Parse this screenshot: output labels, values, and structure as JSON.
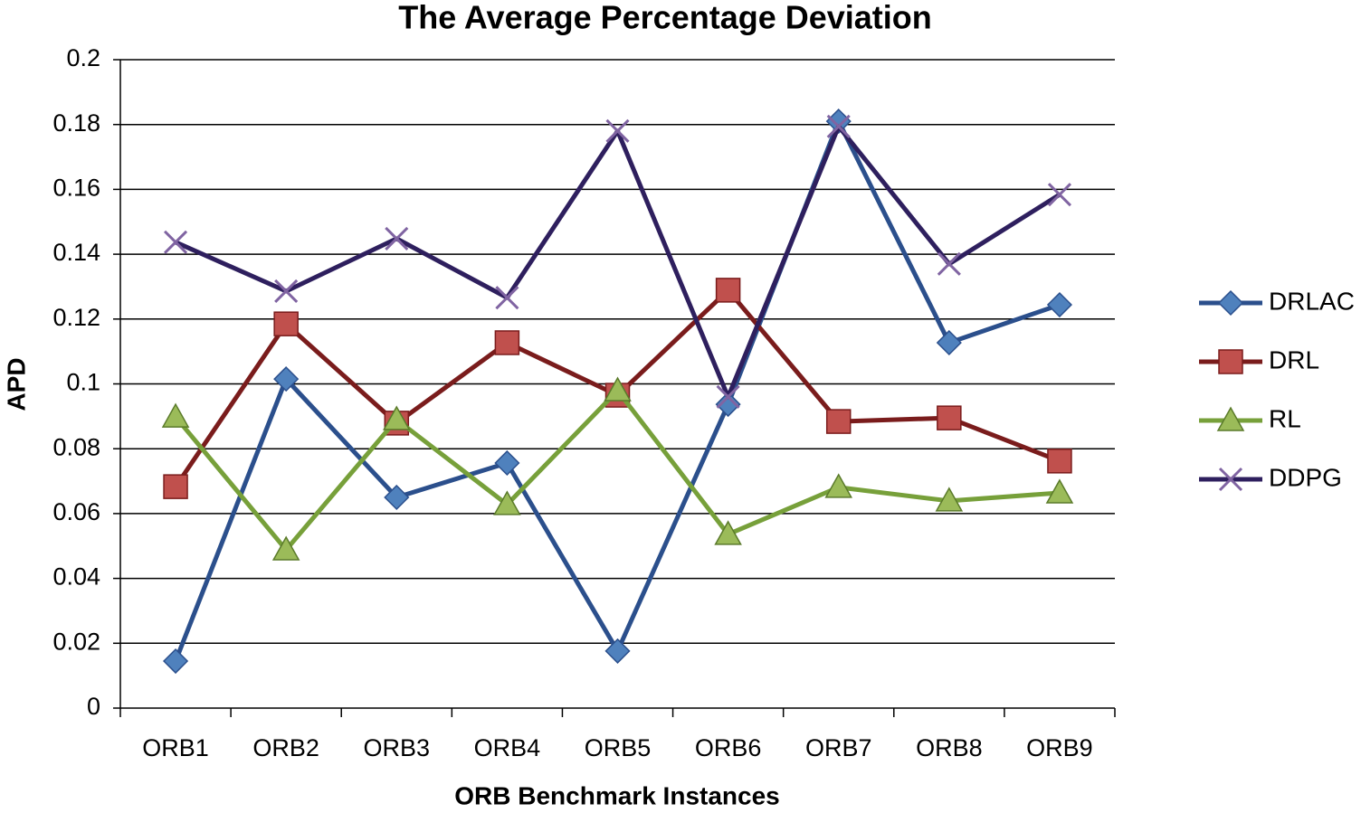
{
  "chart_data": {
    "type": "line",
    "title": "The Average Percentage Deviation",
    "x_label": "ORB Benchmark Instances",
    "y_label": "APD",
    "categories": [
      "ORB1",
      "ORB2",
      "ORB3",
      "ORB4",
      "ORB5",
      "ORB6",
      "ORB7",
      "ORB8",
      "ORB9"
    ],
    "series": [
      {
        "name": "DRLAC",
        "color": "#4f81bd",
        "line_color": "#2b4f8c",
        "marker": "diamond",
        "values": [
          0.0145,
          0.1015,
          0.065,
          0.0756,
          0.0176,
          0.0937,
          0.181,
          0.1127,
          0.1244
        ]
      },
      {
        "name": "DRL",
        "color": "#c0504d",
        "line_color": "#7a1c1c",
        "marker": "square",
        "values": [
          0.0683,
          0.1185,
          0.0879,
          0.1127,
          0.0965,
          0.1289,
          0.0884,
          0.0895,
          0.0762
        ]
      },
      {
        "name": "RL",
        "color": "#9bbb59",
        "line_color": "#77a03a",
        "marker": "triangle",
        "values": [
          0.0898,
          0.0488,
          0.089,
          0.0628,
          0.0979,
          0.0536,
          0.0681,
          0.0639,
          0.0664
        ]
      },
      {
        "name": "DDPG",
        "color": "#8064a2",
        "line_color": "#2e1f5e",
        "marker": "x",
        "values": [
          0.1437,
          0.1286,
          0.1448,
          0.1266,
          0.178,
          0.096,
          0.1794,
          0.137,
          0.1584
        ]
      }
    ],
    "ylim": [
      0,
      0.2
    ],
    "yticks": [
      0,
      0.02,
      0.04,
      0.06,
      0.08,
      0.1,
      0.12,
      0.14,
      0.16,
      0.18,
      0.2
    ],
    "grid": true,
    "legend": "right"
  }
}
